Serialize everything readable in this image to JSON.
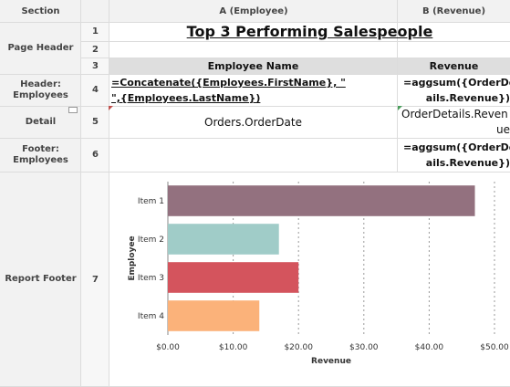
{
  "columns": {
    "section": "Section",
    "a": "A (Employee)",
    "b": "B (Revenue)"
  },
  "sections": {
    "page_header": "Page Header",
    "header_employees": "Header: Employees",
    "detail": "Detail",
    "footer_employees": "Footer: Employees",
    "report_footer": "Report Footer"
  },
  "rows": [
    "1",
    "2",
    "3",
    "4",
    "5",
    "6",
    "7"
  ],
  "cells": {
    "title": "Top 3 Performing Salespeople",
    "employee_name_header": "Employee Name",
    "revenue_header": "Revenue",
    "a4_line1": "=Concatenate({Employees.FirstName}, \"",
    "a4_line2": "\",{Employees.LastName})",
    "b4_line1": "=aggsum({OrderDet",
    "b4_line2": "ails.Revenue})",
    "a5": "Orders.OrderDate",
    "b5_line1": "OrderDetails.Reven",
    "b5_line2": "ue",
    "b6_line1": "=aggsum({OrderDet",
    "b6_line2": "ails.Revenue})"
  },
  "chart_data": {
    "type": "bar",
    "orientation": "horizontal",
    "categories": [
      "Item 1",
      "Item 2",
      "Item 3",
      "Item 4"
    ],
    "values": [
      47,
      17,
      20,
      14
    ],
    "colors": [
      "#93717f",
      "#a0ccc8",
      "#d4545d",
      "#fbb27a"
    ],
    "xlabel": "Revenue",
    "ylabel": "Employee",
    "xlim": [
      0,
      50
    ],
    "xticks": [
      "$0.00",
      "$10.00",
      "$20.00",
      "$30.00",
      "$40.00",
      "$50.00"
    ],
    "grid": true
  }
}
